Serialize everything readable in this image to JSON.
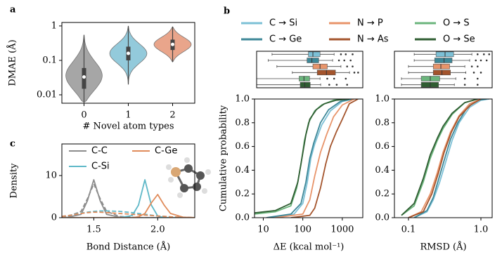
{
  "chart_data": [
    {
      "type": "violin",
      "panel": "a",
      "ylabel": "DMAE (Å)",
      "xlabel": "# Novel atom types",
      "categories": [
        "0",
        "1",
        "2"
      ],
      "ylog": true,
      "ylim": [
        0.0057,
        1.26
      ],
      "yticks": [
        0.01,
        0.1,
        1
      ],
      "violins": [
        {
          "color": "#a6a6a6",
          "min": 0.006,
          "q1": 0.015,
          "median": 0.033,
          "q3": 0.06,
          "max": 0.55
        },
        {
          "color": "#93cadb",
          "min": 0.02,
          "q1": 0.1,
          "median": 0.16,
          "q3": 0.25,
          "max": 1.0
        },
        {
          "color": "#e9a58b",
          "min": 0.09,
          "q1": 0.2,
          "median": 0.29,
          "q3": 0.4,
          "max": 0.95
        }
      ]
    },
    {
      "type": "box",
      "panel": "b",
      "xlog": true,
      "xlim": [
        6,
        3300
      ],
      "series": [
        {
          "color": "#7cc0d6",
          "whisker_low": 15,
          "q1": 130,
          "median": 170,
          "q3": 260,
          "whisker_high": 600,
          "outliers": [
            900,
            1200,
            1800
          ]
        },
        {
          "color": "#3d8797",
          "whisker_low": 12,
          "q1": 120,
          "median": 160,
          "q3": 240,
          "whisker_high": 550,
          "outliers": [
            800,
            1100,
            1600
          ]
        },
        {
          "color": "#e8946a",
          "whisker_low": 20,
          "q1": 170,
          "median": 260,
          "q3": 400,
          "whisker_high": 900,
          "outliers": [
            1300,
            1800
          ]
        },
        {
          "color": "#a4542c",
          "whisker_low": 50,
          "q1": 220,
          "median": 380,
          "q3": 650,
          "whisker_high": 1500,
          "outliers": [
            2000,
            2500
          ]
        },
        {
          "color": "#6bb57c",
          "whisker_low": 6,
          "q1": 75,
          "median": 100,
          "q3": 140,
          "whisker_high": 260,
          "outliers": [
            400,
            600,
            1200
          ]
        },
        {
          "color": "#2f5d32",
          "whisker_low": 6,
          "q1": 80,
          "median": 105,
          "q3": 145,
          "whisker_high": 270,
          "outliers": [
            450,
            700,
            1300
          ]
        }
      ]
    },
    {
      "type": "box",
      "xlog": true,
      "xlim": [
        0.064,
        1.43
      ],
      "series": [
        {
          "color": "#7cc0d6",
          "whisker_low": 0.12,
          "q1": 0.24,
          "median": 0.32,
          "q3": 0.42,
          "whisker_high": 0.75,
          "outliers": [
            0.9,
            1.1,
            1.3
          ]
        },
        {
          "color": "#3d8797",
          "whisker_low": 0.12,
          "q1": 0.23,
          "median": 0.31,
          "q3": 0.4,
          "whisker_high": 0.7,
          "outliers": [
            0.85,
            1.0,
            1.2
          ]
        },
        {
          "color": "#e8946a",
          "whisker_low": 0.1,
          "q1": 0.22,
          "median": 0.28,
          "q3": 0.37,
          "whisker_high": 0.6,
          "outliers": [
            0.75,
            0.9
          ]
        },
        {
          "color": "#a4542c",
          "whisker_low": 0.1,
          "q1": 0.22,
          "median": 0.29,
          "q3": 0.38,
          "whisker_high": 0.62,
          "outliers": [
            0.8,
            1.0
          ]
        },
        {
          "color": "#6bb57c",
          "whisker_low": 0.08,
          "q1": 0.15,
          "median": 0.2,
          "q3": 0.27,
          "whisker_high": 0.45,
          "outliers": [
            0.6,
            0.9
          ]
        },
        {
          "color": "#2f5d32",
          "whisker_low": 0.08,
          "q1": 0.15,
          "median": 0.2,
          "q3": 0.26,
          "whisker_high": 0.43,
          "outliers": [
            0.6,
            0.9
          ]
        }
      ]
    },
    {
      "type": "line",
      "ylabel": "Cumulative probability",
      "xlabel": "ΔE (kcal mol⁻¹)",
      "xlog": true,
      "xlim": [
        6,
        3300
      ],
      "xticks": [
        10,
        100,
        1000
      ],
      "ylim": [
        0,
        1
      ],
      "yticks": [
        {
          "value": 0,
          "label": "0.0"
        },
        0.2,
        0.4,
        0.6,
        0.8,
        {
          "value": 1,
          "label": "1.0"
        }
      ],
      "series": [
        {
          "name": "C → Si",
          "color": "#7cc0d6",
          "x": [
            15,
            60,
            100,
            130,
            160,
            200,
            300,
            500,
            1000,
            2000
          ],
          "values": [
            0,
            0.03,
            0.12,
            0.3,
            0.5,
            0.62,
            0.78,
            0.9,
            0.98,
            1.0
          ]
        },
        {
          "name": "C → Ge",
          "color": "#3d8797",
          "x": [
            12,
            50,
            90,
            120,
            150,
            190,
            280,
            450,
            900,
            1800
          ],
          "values": [
            0,
            0.03,
            0.12,
            0.3,
            0.5,
            0.63,
            0.8,
            0.91,
            0.98,
            1.0
          ]
        },
        {
          "name": "N → P",
          "color": "#e8946a",
          "x": [
            20,
            100,
            150,
            200,
            280,
            400,
            600,
            1000,
            2000
          ],
          "values": [
            0,
            0.03,
            0.15,
            0.35,
            0.55,
            0.7,
            0.85,
            0.95,
            1.0
          ]
        },
        {
          "name": "N → As",
          "color": "#a4542c",
          "x": [
            50,
            150,
            200,
            280,
            380,
            500,
            700,
            1000,
            1500,
            2500
          ],
          "values": [
            0,
            0.02,
            0.08,
            0.25,
            0.45,
            0.6,
            0.72,
            0.83,
            0.96,
            1.0
          ]
        },
        {
          "name": "O → S",
          "color": "#6bb57c",
          "x": [
            6,
            20,
            50,
            70,
            90,
            110,
            140,
            200,
            300,
            600,
            1500
          ],
          "values": [
            0.03,
            0.05,
            0.1,
            0.25,
            0.45,
            0.65,
            0.8,
            0.9,
            0.95,
            0.99,
            1.0
          ]
        },
        {
          "name": "O → Se",
          "color": "#2f5d32",
          "x": [
            6,
            20,
            50,
            75,
            95,
            120,
            150,
            220,
            350,
            700,
            1500
          ],
          "values": [
            0.04,
            0.06,
            0.12,
            0.3,
            0.5,
            0.7,
            0.83,
            0.91,
            0.96,
            0.99,
            1.0
          ]
        }
      ]
    },
    {
      "type": "line",
      "xlabel": "RMSD (Å)",
      "xlog": true,
      "xlim": [
        0.064,
        1.43
      ],
      "xticks": [
        0.1,
        {
          "value": 1,
          "label": "1.0"
        }
      ],
      "ylim": [
        0,
        1
      ],
      "yticks": [
        {
          "value": 0,
          "label": "0.0"
        },
        0.2,
        0.4,
        0.6,
        0.8,
        {
          "value": 1,
          "label": "1.0"
        }
      ],
      "series": [
        {
          "color": "#7cc0d6",
          "x": [
            0.12,
            0.18,
            0.22,
            0.27,
            0.32,
            0.4,
            0.5,
            0.7,
            1.0,
            1.3
          ],
          "values": [
            0,
            0.05,
            0.15,
            0.3,
            0.45,
            0.65,
            0.8,
            0.93,
            0.99,
            1.0
          ]
        },
        {
          "color": "#3d8797",
          "x": [
            0.12,
            0.18,
            0.22,
            0.26,
            0.31,
            0.38,
            0.48,
            0.65,
            0.9,
            1.2
          ],
          "values": [
            0,
            0.06,
            0.17,
            0.32,
            0.48,
            0.66,
            0.8,
            0.93,
            0.99,
            1.0
          ]
        },
        {
          "color": "#e8946a",
          "x": [
            0.1,
            0.15,
            0.2,
            0.25,
            0.3,
            0.38,
            0.5,
            0.7,
            1.0
          ],
          "values": [
            0,
            0.05,
            0.2,
            0.38,
            0.55,
            0.72,
            0.86,
            0.96,
            1.0
          ]
        },
        {
          "color": "#a4542c",
          "x": [
            0.1,
            0.16,
            0.21,
            0.26,
            0.31,
            0.39,
            0.5,
            0.72,
            1.0
          ],
          "values": [
            0,
            0.05,
            0.2,
            0.38,
            0.55,
            0.72,
            0.85,
            0.95,
            1.0
          ]
        },
        {
          "color": "#6bb57c",
          "x": [
            0.08,
            0.12,
            0.16,
            0.2,
            0.25,
            0.3,
            0.4,
            0.6,
            0.9
          ],
          "values": [
            0.02,
            0.1,
            0.3,
            0.5,
            0.65,
            0.75,
            0.87,
            0.97,
            1.0
          ]
        },
        {
          "color": "#2f5d32",
          "x": [
            0.08,
            0.12,
            0.16,
            0.2,
            0.25,
            0.3,
            0.4,
            0.6,
            0.9
          ],
          "values": [
            0.02,
            0.12,
            0.33,
            0.53,
            0.67,
            0.77,
            0.88,
            0.97,
            1.0
          ]
        }
      ]
    },
    {
      "type": "line",
      "panel": "c",
      "ylabel": "Density",
      "xlabel": "Bond Distance (Å)",
      "xlim": [
        1.25,
        2.29
      ],
      "xticks": [
        1.5,
        {
          "value": 2,
          "label": "2.0"
        }
      ],
      "ylim": [
        0,
        17.5
      ],
      "yticks": [
        0,
        10
      ],
      "x": [
        1.2,
        1.3,
        1.4,
        1.45,
        1.5,
        1.55,
        1.6,
        1.7,
        1.8,
        1.85,
        1.9,
        1.95,
        2.0,
        2.05,
        2.1,
        2.2,
        2.3
      ],
      "series": [
        {
          "name": "C-C",
          "color": "#8c8c8c",
          "values": [
            0,
            0.1,
            0.8,
            4,
            9,
            4,
            0.8,
            0.1,
            0,
            0,
            0,
            0,
            0,
            0,
            0,
            0,
            0
          ]
        },
        {
          "color": "#8c8c8c",
          "dash": true,
          "values": [
            0,
            0.3,
            1.5,
            4.5,
            8,
            4.5,
            1.5,
            0.3,
            0.1,
            0,
            0,
            0,
            0,
            0,
            0,
            0,
            0
          ]
        },
        {
          "name": "C-Si",
          "color": "#5fb8c8",
          "values": [
            0,
            0,
            0,
            0,
            0,
            0,
            0,
            0,
            0.5,
            3,
            9,
            3,
            0.4,
            0,
            0,
            0,
            0
          ]
        },
        {
          "color": "#5fb8c8",
          "dash": true,
          "values": [
            0.1,
            0.5,
            1.1,
            1.3,
            1.5,
            1.6,
            1.6,
            1.5,
            1.2,
            1,
            0.8,
            0.6,
            0.4,
            0.3,
            0.2,
            0.1,
            0
          ]
        },
        {
          "name": "C-Ge",
          "color": "#e08b5a",
          "values": [
            0,
            0,
            0,
            0,
            0,
            0,
            0,
            0,
            0,
            0.2,
            1,
            3.5,
            5.5,
            3,
            1,
            0.1,
            0
          ]
        },
        {
          "color": "#e08b5a",
          "dash": true,
          "values": [
            0.1,
            0.5,
            1,
            1.2,
            1.3,
            1.3,
            1.2,
            1,
            0.8,
            0.7,
            0.6,
            0.5,
            0.4,
            0.3,
            0.2,
            0.1,
            0
          ]
        }
      ]
    }
  ]
}
